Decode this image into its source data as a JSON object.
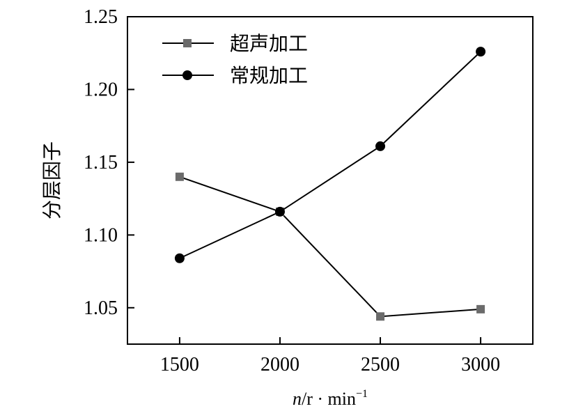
{
  "chart_data": {
    "type": "line",
    "xlabel_italic": "n",
    "xlabel_unit": "/r · min",
    "xlabel_superscript": "−1",
    "ylabel": "分层因子",
    "categories": [
      "1500",
      "2000",
      "2500",
      "3000"
    ],
    "x": [
      1500,
      2000,
      2500,
      3000
    ],
    "xlim": [
      1240,
      3260
    ],
    "ylim": [
      1.025,
      1.25
    ],
    "yticks": [
      1.05,
      1.1,
      1.15,
      1.2,
      1.25
    ],
    "ytick_labels": [
      "1.05",
      "1.10",
      "1.15",
      "1.20",
      "1.25"
    ],
    "grid": false,
    "legend_position": "top-left",
    "series": [
      {
        "name": "超声加工",
        "marker": "square",
        "color": "#6b6b6b",
        "values": [
          1.14,
          1.116,
          1.044,
          1.049
        ]
      },
      {
        "name": "常规加工",
        "marker": "circle",
        "color": "#000000",
        "values": [
          1.084,
          1.116,
          1.161,
          1.226
        ]
      }
    ]
  }
}
